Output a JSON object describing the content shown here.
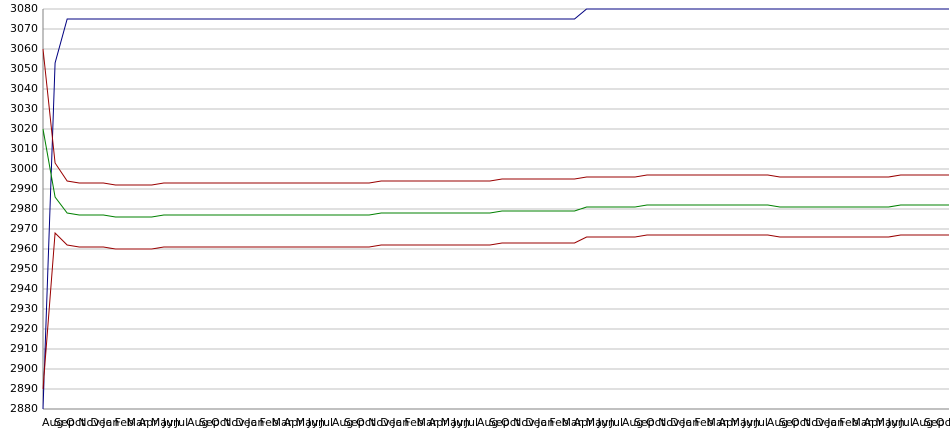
{
  "chart_data": {
    "type": "line",
    "categories": [
      "Aug",
      "Sep",
      "Oct",
      "Nov",
      "Dec",
      "Jan",
      "Feb",
      "Mar",
      "Apr",
      "May",
      "Jun",
      "Jul",
      "Aug",
      "Sep",
      "Oct",
      "Nov",
      "Dec",
      "Jan",
      "Feb",
      "Mar",
      "Apr",
      "May",
      "Jun",
      "Jul",
      "Aug",
      "Sep",
      "Oct",
      "Nov",
      "Dec",
      "Jan",
      "Feb",
      "Mar",
      "Apr",
      "May",
      "Jun",
      "Jul",
      "Aug",
      "Sep",
      "Oct",
      "Nov",
      "Dec",
      "Jan",
      "Feb",
      "Mar",
      "Apr",
      "May",
      "Jun",
      "Jul",
      "Aug",
      "Sep",
      "Oct",
      "Nov",
      "Dec",
      "Jan",
      "Feb",
      "Mar",
      "Apr",
      "May",
      "Jun",
      "Jul",
      "Aug",
      "Sep",
      "Oct",
      "Nov",
      "Dec",
      "Jan",
      "Feb",
      "Mar",
      "Apr",
      "May",
      "Jun",
      "Jul",
      "Aug",
      "Sep",
      "Oct",
      "Nov"
    ],
    "series": [
      {
        "color": "#000080",
        "values": [
          2880,
          3053,
          3075,
          3075,
          3075,
          3075,
          3075,
          3075,
          3075,
          3075,
          3075,
          3075,
          3075,
          3075,
          3075,
          3075,
          3075,
          3075,
          3075,
          3075,
          3075,
          3075,
          3075,
          3075,
          3075,
          3075,
          3075,
          3075,
          3075,
          3075,
          3075,
          3075,
          3075,
          3075,
          3075,
          3075,
          3075,
          3075,
          3075,
          3075,
          3075,
          3075,
          3075,
          3075,
          3075,
          3080,
          3080,
          3080,
          3080,
          3080,
          3080,
          3080,
          3080,
          3080,
          3080,
          3080,
          3080,
          3080,
          3080,
          3080,
          3080,
          3080,
          3080,
          3080,
          3080,
          3080,
          3080,
          3080,
          3080,
          3080,
          3080,
          3080,
          3080,
          3080,
          3080,
          3080
        ]
      },
      {
        "color": "#990000",
        "values": [
          3060,
          3003,
          2994,
          2993,
          2993,
          2993,
          2992,
          2992,
          2992,
          2992,
          2993,
          2993,
          2993,
          2993,
          2993,
          2993,
          2993,
          2993,
          2993,
          2993,
          2993,
          2993,
          2993,
          2993,
          2993,
          2993,
          2993,
          2993,
          2994,
          2994,
          2994,
          2994,
          2994,
          2994,
          2994,
          2994,
          2994,
          2994,
          2995,
          2995,
          2995,
          2995,
          2995,
          2995,
          2995,
          2996,
          2996,
          2996,
          2996,
          2996,
          2997,
          2997,
          2997,
          2997,
          2997,
          2997,
          2997,
          2997,
          2997,
          2997,
          2997,
          2996,
          2996,
          2996,
          2996,
          2996,
          2996,
          2996,
          2996,
          2996,
          2996,
          2997,
          2997,
          2997,
          2997,
          2997
        ]
      },
      {
        "color": "#008000",
        "values": [
          3020,
          2986,
          2978,
          2977,
          2977,
          2977,
          2976,
          2976,
          2976,
          2976,
          2977,
          2977,
          2977,
          2977,
          2977,
          2977,
          2977,
          2977,
          2977,
          2977,
          2977,
          2977,
          2977,
          2977,
          2977,
          2977,
          2977,
          2977,
          2978,
          2978,
          2978,
          2978,
          2978,
          2978,
          2978,
          2978,
          2978,
          2978,
          2979,
          2979,
          2979,
          2979,
          2979,
          2979,
          2979,
          2981,
          2981,
          2981,
          2981,
          2981,
          2982,
          2982,
          2982,
          2982,
          2982,
          2982,
          2982,
          2982,
          2982,
          2982,
          2982,
          2981,
          2981,
          2981,
          2981,
          2981,
          2981,
          2981,
          2981,
          2981,
          2981,
          2982,
          2982,
          2982,
          2982,
          2982
        ]
      },
      {
        "color": "#990000",
        "values": [
          2890,
          2968,
          2962,
          2961,
          2961,
          2961,
          2960,
          2960,
          2960,
          2960,
          2961,
          2961,
          2961,
          2961,
          2961,
          2961,
          2961,
          2961,
          2961,
          2961,
          2961,
          2961,
          2961,
          2961,
          2961,
          2961,
          2961,
          2961,
          2962,
          2962,
          2962,
          2962,
          2962,
          2962,
          2962,
          2962,
          2962,
          2962,
          2963,
          2963,
          2963,
          2963,
          2963,
          2963,
          2963,
          2966,
          2966,
          2966,
          2966,
          2966,
          2967,
          2967,
          2967,
          2967,
          2967,
          2967,
          2967,
          2967,
          2967,
          2967,
          2967,
          2966,
          2966,
          2966,
          2966,
          2966,
          2966,
          2966,
          2966,
          2966,
          2966,
          2967,
          2967,
          2967,
          2967,
          2967
        ]
      }
    ],
    "ylim": [
      2880,
      3080
    ],
    "yticks": [
      2880,
      2890,
      2900,
      2910,
      2920,
      2930,
      2940,
      2950,
      2960,
      2970,
      2980,
      2990,
      3000,
      3010,
      3020,
      3030,
      3040,
      3050,
      3060,
      3070,
      3080
    ],
    "grid": true
  }
}
